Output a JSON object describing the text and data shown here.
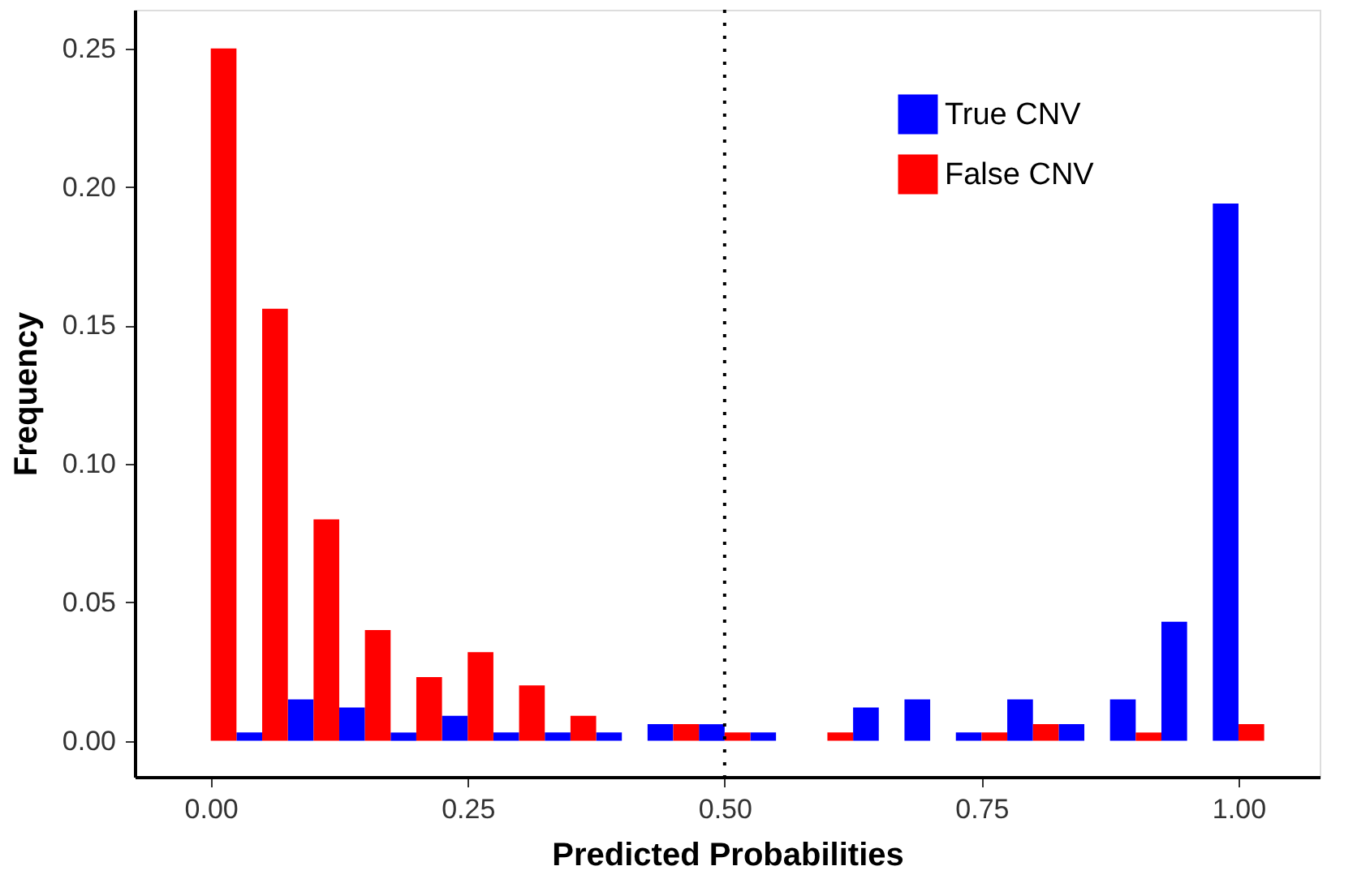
{
  "chart_data": {
    "type": "histogram",
    "xlabel": "Predicted Probabilities",
    "ylabel": "Frequency",
    "bins": [
      -0.025,
      0.025,
      0.075,
      0.125,
      0.175,
      0.225,
      0.275,
      0.325,
      0.375,
      0.425,
      0.475,
      0.525,
      0.575,
      0.625,
      0.675,
      0.725,
      0.775,
      0.825,
      0.875,
      0.925,
      0.975,
      1.025
    ],
    "series": [
      {
        "name": "True CNV",
        "color": "#0000ff",
        "values": [
          0,
          0.003,
          0.015,
          0.012,
          0.003,
          0.009,
          0.003,
          0.003,
          0.003,
          0.006,
          0.006,
          0.003,
          0,
          0.012,
          0.015,
          0.003,
          0.015,
          0.006,
          0.015,
          0.043,
          0.194
        ]
      },
      {
        "name": "False CNV",
        "color": "#ff0000",
        "values": [
          0.25,
          0.156,
          0.08,
          0.04,
          0.023,
          0.032,
          0.02,
          0.009,
          0,
          0.006,
          0.003,
          0,
          0.003,
          0,
          0,
          0.003,
          0.006,
          0,
          0.003,
          0,
          0.006
        ]
      }
    ],
    "xlim": [
      -0.074,
      1.079
    ],
    "ylim": [
      -0.013,
      0.264
    ],
    "xticks": [
      {
        "value": 0,
        "label": "0.00"
      },
      {
        "value": 0.25,
        "label": "0.25"
      },
      {
        "value": 0.5,
        "label": "0.50"
      },
      {
        "value": 0.75,
        "label": "0.75"
      },
      {
        "value": 1,
        "label": "1.00"
      }
    ],
    "yticks": [
      {
        "value": 0,
        "label": "0.00"
      },
      {
        "value": 0.05,
        "label": "0.05"
      },
      {
        "value": 0.1,
        "label": "0.10"
      },
      {
        "value": 0.15,
        "label": "0.15"
      },
      {
        "value": 0.2,
        "label": "0.20"
      },
      {
        "value": 0.25,
        "label": "0.25"
      }
    ],
    "ref_lines": [
      {
        "axis": "x",
        "value": 0.5,
        "color": "#000000",
        "line_style": "dotted"
      }
    ],
    "legend": "top right",
    "grid": false
  }
}
